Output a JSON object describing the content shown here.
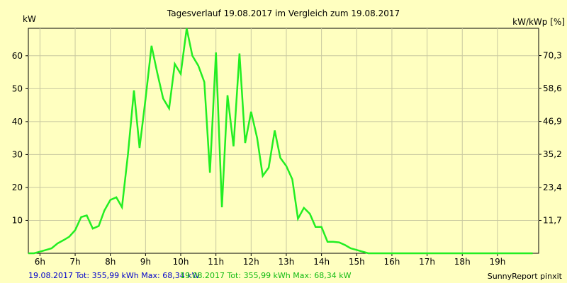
{
  "chart_data": {
    "type": "line",
    "title": "Tagesverlauf 19.08.2017 im Vergleich zum 19.08.2017",
    "ylabel": "kW",
    "y2label": "kW/kWp [%]",
    "xlim": [
      5.67,
      20.17
    ],
    "ylim": [
      0,
      68.34
    ],
    "x_ticks": [
      "6h",
      "7h",
      "8h",
      "9h",
      "10h",
      "11h",
      "12h",
      "13h",
      "14h",
      "15h",
      "16h",
      "17h",
      "18h",
      "19h"
    ],
    "x_tick_values": [
      6,
      7,
      8,
      9,
      10,
      11,
      12,
      13,
      14,
      15,
      16,
      17,
      18,
      19
    ],
    "y_ticks": [
      10,
      20,
      30,
      40,
      50,
      60
    ],
    "y2_ticks": [
      "11,7",
      "23,4",
      "35,2",
      "46,9",
      "58,6",
      "70,3"
    ],
    "y2_tick_values": [
      11.7,
      23.4,
      35.2,
      46.9,
      58.6,
      70.3
    ],
    "y2_max": 80.0,
    "grid": true,
    "series": [
      {
        "color": "#22ee22",
        "x": [
          5.67,
          5.83,
          6.0,
          6.17,
          6.33,
          6.5,
          6.67,
          6.83,
          7.0,
          7.17,
          7.33,
          7.5,
          7.67,
          7.83,
          8.0,
          8.17,
          8.33,
          8.5,
          8.67,
          8.83,
          9.0,
          9.17,
          9.33,
          9.5,
          9.67,
          9.83,
          10.0,
          10.17,
          10.33,
          10.5,
          10.67,
          10.83,
          11.0,
          11.17,
          11.33,
          11.5,
          11.67,
          11.83,
          12.0,
          12.17,
          12.33,
          12.5,
          12.67,
          12.83,
          13.0,
          13.17,
          13.33,
          13.5,
          13.67,
          13.83,
          14.0,
          14.17,
          14.33,
          14.5,
          14.67,
          14.83,
          15.0,
          15.17,
          15.33,
          15.5,
          15.67,
          15.83,
          16.0,
          16.17,
          16.33,
          16.5,
          16.67,
          16.83,
          17.0,
          17.17,
          17.33,
          17.5,
          17.67,
          17.83,
          18.0,
          18.17,
          18.33,
          18.5,
          18.67,
          18.83,
          19.0,
          19.17,
          19.33,
          19.5,
          19.67,
          19.83,
          20.0
        ],
        "y": [
          0,
          0,
          0.5,
          1.0,
          1.5,
          3.0,
          4.0,
          5.0,
          7.0,
          11.0,
          11.5,
          7.5,
          8.3,
          13.0,
          16.2,
          17.0,
          14.0,
          30.0,
          49.5,
          32.0,
          47.0,
          63.0,
          55.0,
          47.0,
          44.0,
          57.5,
          54.5,
          68.3,
          60.0,
          57.0,
          52.0,
          24.5,
          61.0,
          14.0,
          48.0,
          32.5,
          60.7,
          33.5,
          43.0,
          35.0,
          23.5,
          26.0,
          37.3,
          29.0,
          26.5,
          22.5,
          10.5,
          13.8,
          12.0,
          8.0,
          8.0,
          3.5,
          3.5,
          3.3,
          2.5,
          1.5,
          1.0,
          0.5,
          0.0,
          0.0,
          0,
          0,
          0,
          0,
          0,
          0,
          0,
          0,
          0,
          0,
          0,
          0,
          0,
          0,
          0,
          0,
          0,
          0,
          0,
          0,
          0,
          0,
          0,
          0,
          0,
          0,
          0
        ]
      }
    ]
  },
  "footer": {
    "series1_text": "19.08.2017 Tot: 355,99 kWh Max: 68,34 kW",
    "series1_color": "#0000cc",
    "series2_text": "19.08.2017 Tot: 355,99 kWh Max: 68,34 kW",
    "series2_color": "#11bb11",
    "brand": "SunnyReport pinxit"
  }
}
